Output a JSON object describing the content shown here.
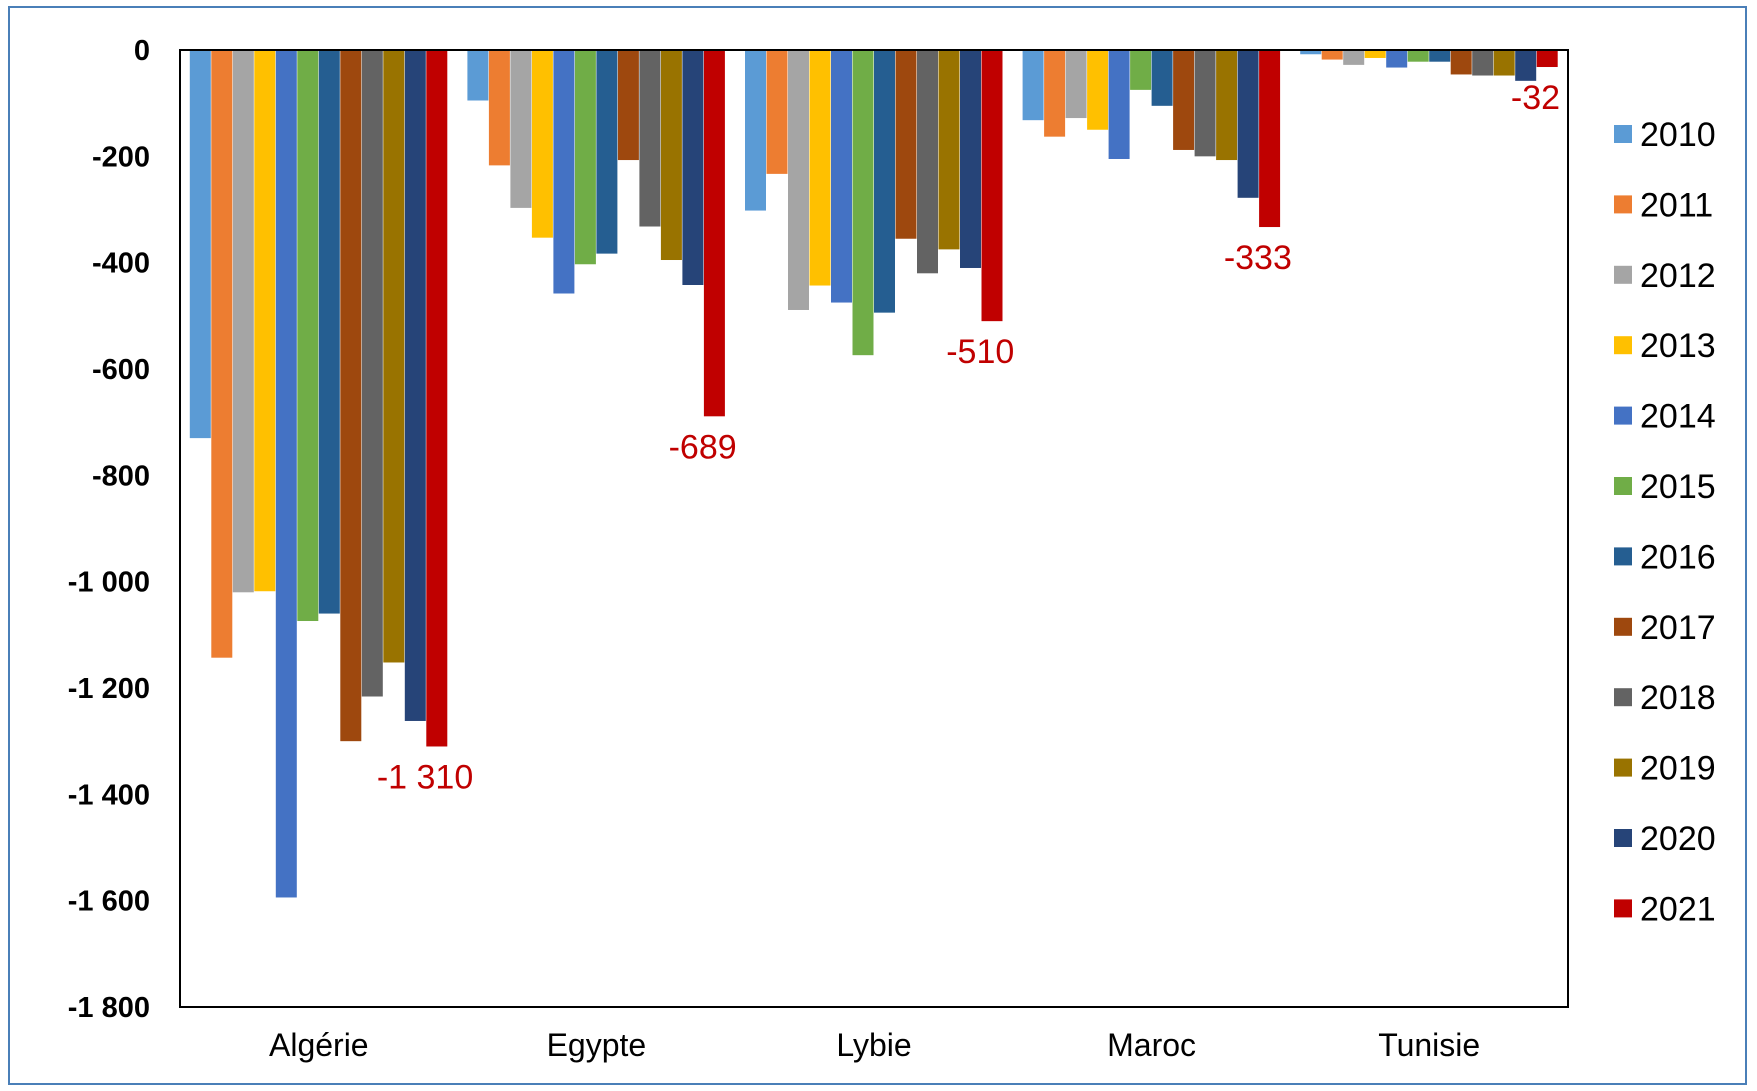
{
  "chart_data": {
    "type": "bar",
    "categories": [
      "Algérie",
      "Egypte",
      "Lybie",
      "Maroc",
      "Tunisie"
    ],
    "ylim": [
      -1800,
      0
    ],
    "yticks": [
      0,
      -200,
      -400,
      -600,
      -800,
      -1000,
      -1200,
      -1400,
      -1600,
      -1800
    ],
    "ytick_labels": [
      "0",
      "-200",
      "-400",
      "-600",
      "-800",
      "-1 000",
      "-1 200",
      "-1 400",
      "-1 600",
      "-1 800"
    ],
    "grid": false,
    "legend_position": "right",
    "series": [
      {
        "name": "2010",
        "color": "#5b9bd5",
        "values": [
          -730,
          -95,
          -302,
          -132,
          -8
        ]
      },
      {
        "name": "2011",
        "color": "#ed7d31",
        "values": [
          -1143,
          -217,
          -233,
          -163,
          -18
        ]
      },
      {
        "name": "2012",
        "color": "#a5a5a5",
        "values": [
          -1020,
          -297,
          -489,
          -128,
          -28
        ]
      },
      {
        "name": "2013",
        "color": "#ffc000",
        "values": [
          -1018,
          -353,
          -443,
          -150,
          -15
        ]
      },
      {
        "name": "2014",
        "color": "#4472c4",
        "values": [
          -1594,
          -458,
          -475,
          -205,
          -33
        ]
      },
      {
        "name": "2015",
        "color": "#70ad47",
        "values": [
          -1074,
          -403,
          -574,
          -75,
          -22
        ]
      },
      {
        "name": "2016",
        "color": "#255e91",
        "values": [
          -1060,
          -383,
          -494,
          -105,
          -22
        ]
      },
      {
        "name": "2017",
        "color": "#9e480e",
        "values": [
          -1300,
          -207,
          -355,
          -188,
          -46
        ]
      },
      {
        "name": "2018",
        "color": "#636363",
        "values": [
          -1216,
          -332,
          -420,
          -200,
          -48
        ]
      },
      {
        "name": "2019",
        "color": "#997300",
        "values": [
          -1152,
          -395,
          -375,
          -207,
          -48
        ]
      },
      {
        "name": "2020",
        "color": "#264478",
        "values": [
          -1262,
          -442,
          -410,
          -278,
          -58
        ]
      },
      {
        "name": "2021",
        "color": "#c00000",
        "values": [
          -1310,
          -689,
          -510,
          -333,
          -32
        ],
        "data_labels": [
          "-1 310",
          "-689",
          "-510",
          "-333",
          "-32"
        ],
        "label_color": "#c00000"
      }
    ]
  }
}
